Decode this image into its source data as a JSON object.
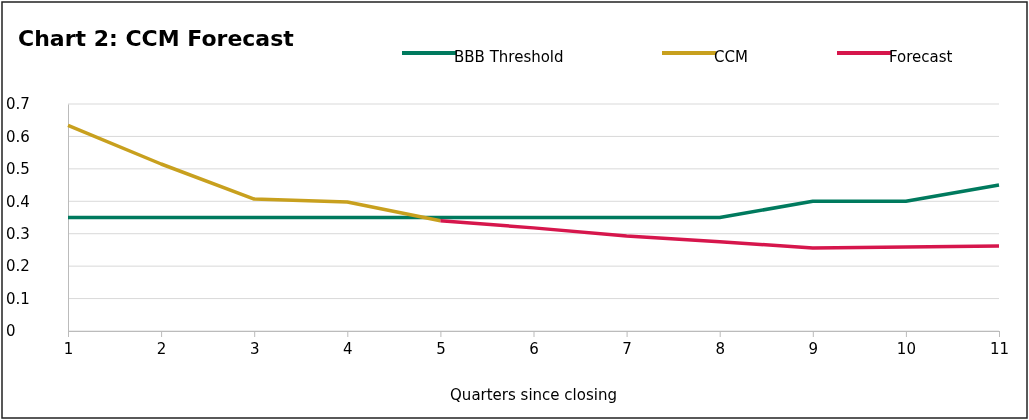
{
  "chart_data": {
    "type": "line",
    "title": "Chart 2: CCM Forecast",
    "xlabel": "Quarters since closing",
    "x": [
      1,
      2,
      3,
      4,
      5,
      6,
      7,
      8,
      9,
      10,
      11
    ],
    "series": [
      {
        "name": "BBB Threshold",
        "color": "#007a5e",
        "values": [
          0.35,
          0.35,
          0.35,
          0.35,
          0.35,
          0.35,
          0.35,
          0.35,
          0.4,
          0.4,
          0.45
        ]
      },
      {
        "name": "CCM",
        "color": "#c8a01e",
        "values": [
          0.634,
          0.515,
          0.407,
          0.398,
          0.34,
          null,
          null,
          null,
          null,
          null,
          null
        ]
      },
      {
        "name": "Forecast",
        "color": "#d6164c",
        "values": [
          null,
          null,
          null,
          null,
          0.34,
          0.318,
          0.293,
          0.275,
          0.256,
          0.259,
          0.262
        ]
      }
    ],
    "xlim": [
      1,
      11
    ],
    "xticks": [
      1,
      2,
      3,
      4,
      5,
      6,
      7,
      8,
      9,
      10,
      11
    ],
    "ylim": [
      0,
      0.7
    ],
    "yticks": [
      0,
      0.1,
      0.2,
      0.3,
      0.4,
      0.5,
      0.6,
      0.7
    ],
    "grid": "y",
    "legend": "top right",
    "marker": "none",
    "line_style": "solid"
  }
}
